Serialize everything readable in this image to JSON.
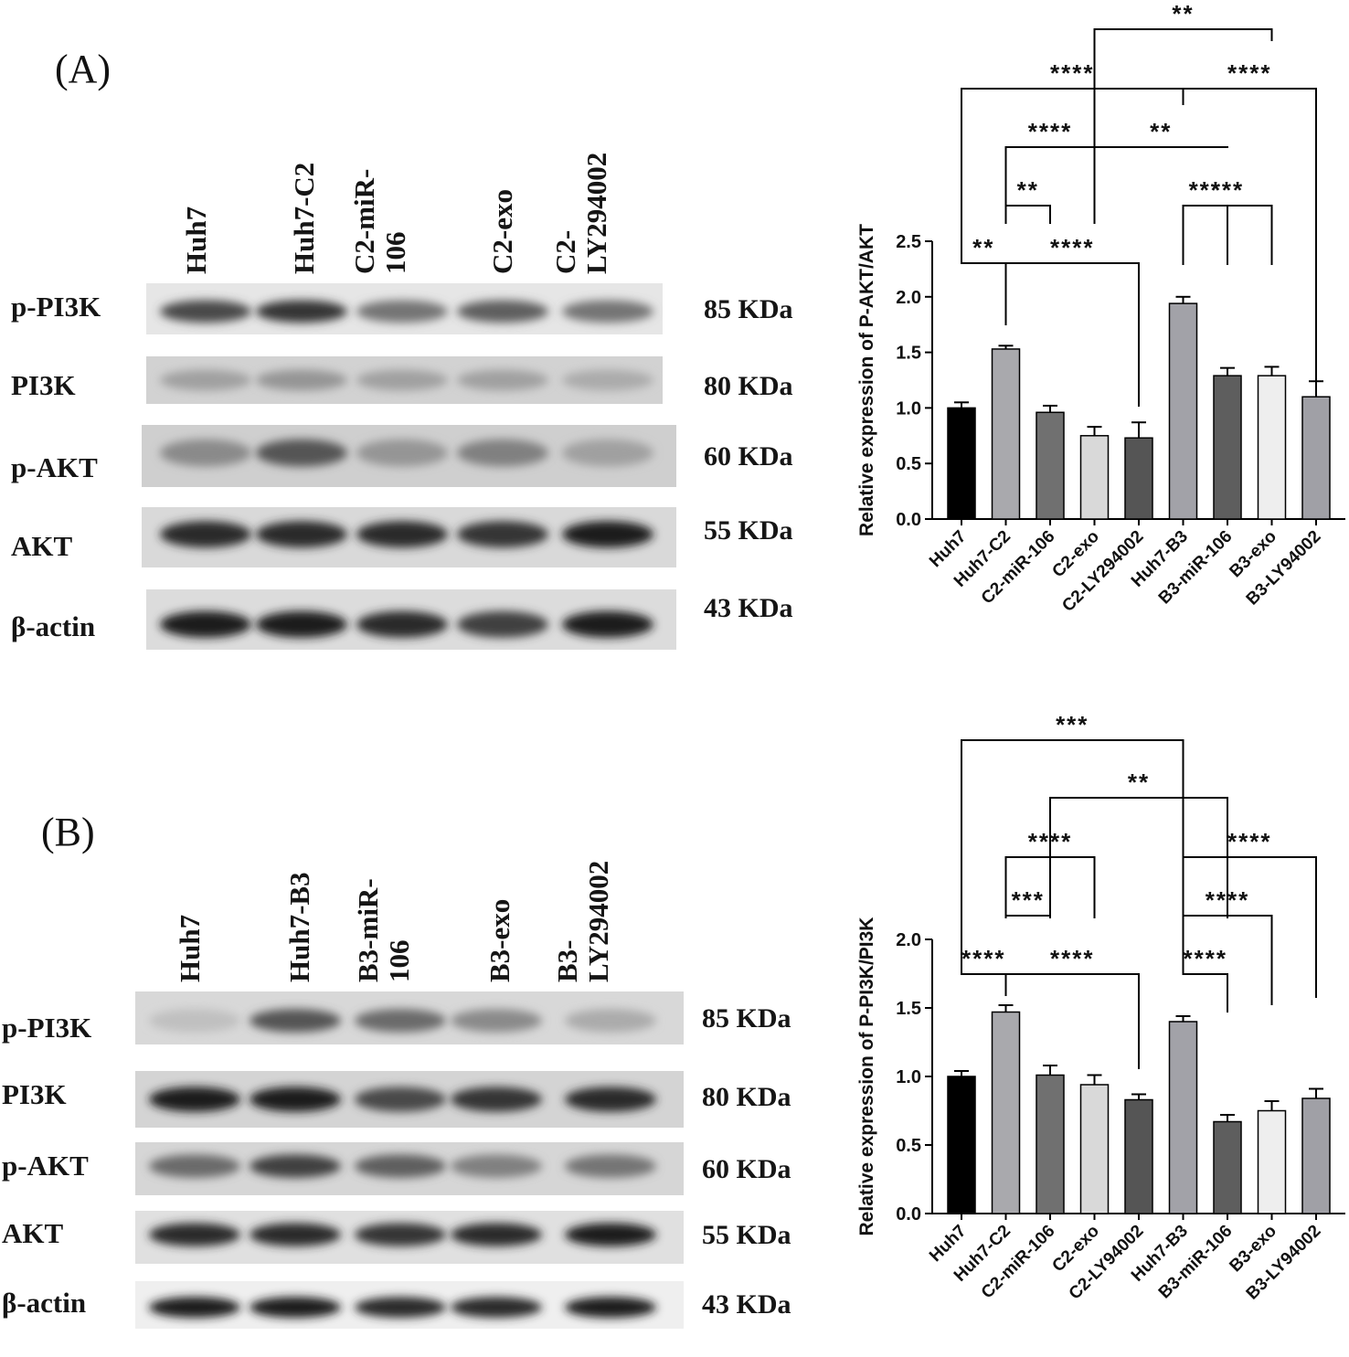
{
  "panel_a": {
    "label": "(A)",
    "lanes": [
      "Huh7",
      "Huh7-C2",
      "C2-miR-\n106",
      "C2-exo",
      "C2-\nLY294002"
    ],
    "rows": [
      "p-PI3K",
      "PI3K",
      "p-AKT",
      "AKT",
      "β-actin"
    ],
    "kda": [
      "85 KDa",
      "80 KDa",
      "60 KDa",
      "55 KDa",
      "43 KDa"
    ]
  },
  "panel_b": {
    "label": "(B)",
    "lanes": [
      "Huh7",
      "Huh7-B3",
      "B3-miR-\n106",
      "B3-exo",
      "B3-\nLY294002"
    ],
    "rows": [
      "p-PI3K",
      "PI3K",
      "p-AKT",
      "AKT",
      "β-actin"
    ],
    "kda": [
      "85 KDa",
      "80 KDa",
      "60 KDa",
      "55 KDa",
      "43 KDa"
    ]
  },
  "blot_intensity": {
    "panel_a": [
      [
        0.75,
        0.85,
        0.55,
        0.65,
        0.55
      ],
      [
        0.35,
        0.4,
        0.35,
        0.35,
        0.3
      ],
      [
        0.45,
        0.7,
        0.4,
        0.5,
        0.35
      ],
      [
        0.9,
        0.9,
        0.9,
        0.85,
        0.95
      ],
      [
        0.95,
        0.95,
        0.9,
        0.8,
        0.95
      ]
    ],
    "panel_b": [
      [
        0.2,
        0.7,
        0.6,
        0.45,
        0.3
      ],
      [
        0.95,
        0.95,
        0.75,
        0.85,
        0.9
      ],
      [
        0.6,
        0.8,
        0.65,
        0.5,
        0.55
      ],
      [
        0.9,
        0.9,
        0.85,
        0.9,
        0.95
      ],
      [
        0.95,
        0.95,
        0.9,
        0.9,
        0.95
      ]
    ]
  },
  "chart_data": [
    {
      "type": "bar",
      "ylabel": "Relative expression of P-AKT/AKT",
      "ylim": [
        0,
        2.5
      ],
      "yticks": [
        "0.0",
        "0.5",
        "1.0",
        "1.5",
        "2.0",
        "2.5"
      ],
      "categories": [
        "Huh7",
        "Huh7-C2",
        "C2-miR-106",
        "C2-exo",
        "C2-LY294002",
        "Huh7-B3",
        "B3-miR-106",
        "B3-exo",
        "B3-LY94002"
      ],
      "values": [
        1.0,
        1.53,
        0.96,
        0.75,
        0.73,
        1.94,
        1.29,
        1.29,
        1.1
      ],
      "errors": [
        0.05,
        0.03,
        0.06,
        0.08,
        0.14,
        0.06,
        0.07,
        0.08,
        0.14
      ],
      "bar_colors": [
        "#000000",
        "#a9a9ad",
        "#707070",
        "#d9d9d9",
        "#555555",
        "#a2a2a8",
        "#5e5e5e",
        "#eeeeee",
        "#a0a0a6"
      ],
      "significance": [
        {
          "from": 0,
          "to": 1,
          "label": "**"
        },
        {
          "from": 1,
          "to": 4,
          "label": "****"
        },
        {
          "from": 1,
          "to": 2,
          "label": "**"
        },
        {
          "from": 1,
          "to": 3,
          "label": "****"
        },
        {
          "from": 3,
          "to": 6,
          "label": "**"
        },
        {
          "from": 0,
          "to": 5,
          "label": "****"
        },
        {
          "from": 5,
          "to": 8,
          "label": "****"
        },
        {
          "from": 3,
          "to": 7,
          "label": "**"
        },
        {
          "from": 5,
          "to": 6,
          "label": "***"
        },
        {
          "from": 5,
          "to": 7,
          "label": "***"
        }
      ]
    },
    {
      "type": "bar",
      "ylabel": "Relative expression of P-PI3K/PI3K",
      "ylim": [
        0,
        2.0
      ],
      "yticks": [
        "0.0",
        "0.5",
        "1.0",
        "1.5",
        "2.0"
      ],
      "categories": [
        "Huh7",
        "Huh7-C2",
        "C2-miR-106",
        "C2-exo",
        "C2-LY94002",
        "Huh7-B3",
        "B3-miR-106",
        "B3-exo",
        "B3-LY94002"
      ],
      "values": [
        1.0,
        1.47,
        1.01,
        0.94,
        0.83,
        1.4,
        0.67,
        0.75,
        0.84
      ],
      "errors": [
        0.04,
        0.05,
        0.07,
        0.07,
        0.04,
        0.04,
        0.05,
        0.07,
        0.07
      ],
      "bar_colors": [
        "#000000",
        "#a9a9ad",
        "#707070",
        "#d9d9d9",
        "#555555",
        "#a2a2a8",
        "#5e5e5e",
        "#eeeeee",
        "#a0a0a6"
      ],
      "significance": [
        {
          "from": 0,
          "to": 1,
          "label": "****"
        },
        {
          "from": 1,
          "to": 4,
          "label": "****"
        },
        {
          "from": 1,
          "to": 2,
          "label": "***"
        },
        {
          "from": 1,
          "to": 3,
          "label": "****"
        },
        {
          "from": 2,
          "to": 6,
          "label": "**"
        },
        {
          "from": 0,
          "to": 5,
          "label": "***"
        },
        {
          "from": 5,
          "to": 6,
          "label": "****"
        },
        {
          "from": 5,
          "to": 7,
          "label": "****"
        },
        {
          "from": 5,
          "to": 8,
          "label": "****"
        }
      ]
    }
  ]
}
